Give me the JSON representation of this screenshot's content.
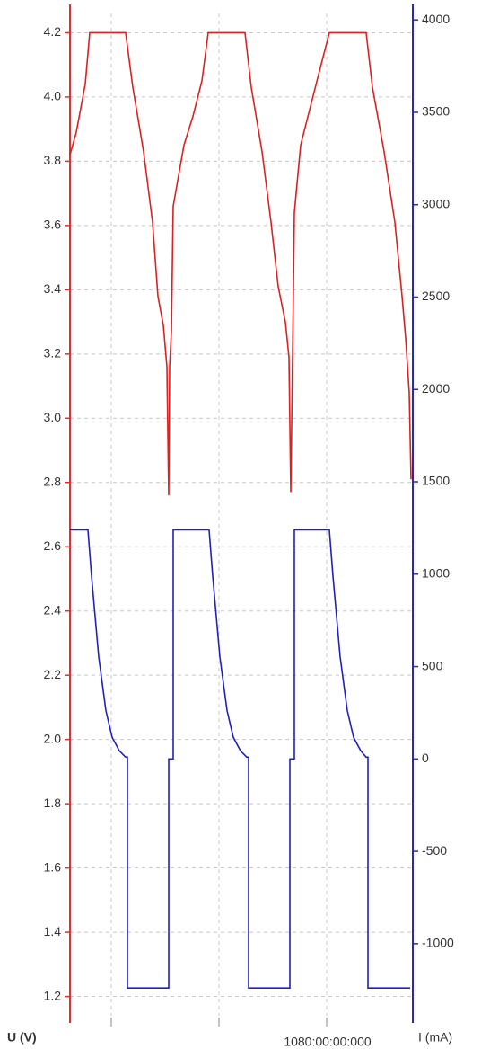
{
  "chart_data": {
    "type": "line",
    "xlabel": "1080:00:00:000",
    "ylabel": "U (V)",
    "y2label": "I (mA)",
    "xlim": [
      794,
      1176
    ],
    "xticks": [
      {
        "value": 840,
        "label": null
      },
      {
        "value": 960,
        "label": null
      },
      {
        "value": 1080,
        "label": "1080:00:00:000"
      }
    ],
    "ylim": [
      1.14,
      4.26
    ],
    "yticks": [
      {
        "value": 1.2,
        "label": "1.2"
      },
      {
        "value": 1.4,
        "label": "1.4"
      },
      {
        "value": 1.6,
        "label": "1.6"
      },
      {
        "value": 1.8,
        "label": "1.8"
      },
      {
        "value": 2,
        "label": "2.0"
      },
      {
        "value": 2.2,
        "label": "2.2"
      },
      {
        "value": 2.4,
        "label": "2.4"
      },
      {
        "value": 2.6,
        "label": "2.6"
      },
      {
        "value": 2.8,
        "label": "2.8"
      },
      {
        "value": 3,
        "label": "3.0"
      },
      {
        "value": 3.2,
        "label": "3.2"
      },
      {
        "value": 3.4,
        "label": "3.4"
      },
      {
        "value": 3.6,
        "label": "3.6"
      },
      {
        "value": 3.8,
        "label": "3.8"
      },
      {
        "value": 4,
        "label": "4.0"
      },
      {
        "value": 4.2,
        "label": "4.2"
      }
    ],
    "y2lim": [
      -1390,
      4035
    ],
    "y2ticks": [
      -1000,
      -500,
      0,
      500,
      1000,
      1500,
      2000,
      2500,
      3000,
      3500,
      4000
    ],
    "ycolor": "#e03030",
    "y2color": "#2a2ab0",
    "grid": true,
    "series": [
      {
        "color": "#dd2020",
        "x": [
          794,
          801,
          811,
          816,
          856,
          864,
          876,
          886,
          892,
          898,
          902,
          904,
          905,
          907,
          909,
          921,
          931,
          941,
          948,
          989,
          996,
          1008,
          1018,
          1026,
          1034,
          1038,
          1040,
          1042,
          1044,
          1051,
          1061,
          1071,
          1083,
          1124,
          1131,
          1144,
          1156,
          1164,
          1168,
          1172,
          1174
        ],
        "values": [
          3.82,
          3.89,
          4.04,
          4.2,
          4.2,
          4.03,
          3.83,
          3.61,
          3.38,
          3.29,
          3.16,
          2.76,
          3.16,
          3.27,
          3.66,
          3.85,
          3.94,
          4.05,
          4.2,
          4.2,
          4.03,
          3.83,
          3.61,
          3.41,
          3.3,
          3.19,
          2.77,
          3.19,
          3.64,
          3.85,
          3.96,
          4.07,
          4.2,
          4.2,
          4.03,
          3.83,
          3.61,
          3.38,
          3.25,
          3.08,
          2.81
        ]
      },
      {
        "color": "#2020c0",
        "axis": "y2",
        "x": [
          794,
          814,
          818,
          826,
          834,
          841,
          849,
          856,
          858,
          858,
          904,
          904,
          909,
          909,
          949,
          953,
          961,
          969,
          976,
          984,
          991,
          993,
          993,
          1039,
          1039,
          1044,
          1044,
          1083,
          1087,
          1095,
          1103,
          1110,
          1118,
          1124,
          1126,
          1126,
          1173
        ],
        "values": [
          1240,
          1240,
          990,
          553,
          262,
          117,
          44,
          10,
          10,
          -1240,
          -1240,
          0,
          0,
          1240,
          1240,
          990,
          553,
          262,
          117,
          44,
          10,
          10,
          -1240,
          -1240,
          0,
          0,
          1240,
          1240,
          990,
          553,
          262,
          117,
          44,
          10,
          10,
          -1240,
          -1240
        ]
      }
    ]
  }
}
